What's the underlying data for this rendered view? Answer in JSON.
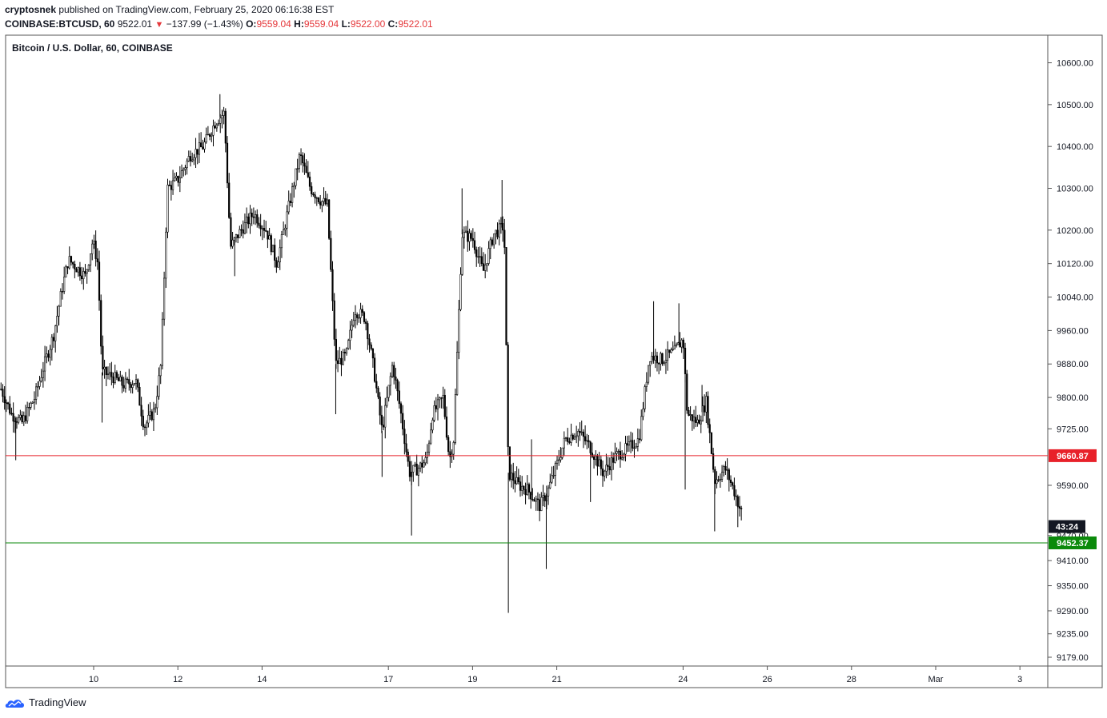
{
  "header": {
    "author": "cryptosnek",
    "published_text": "published on TradingView.com, February 25, 2020 06:16:38 EST",
    "symbol": "COINBASE:BTCUSD, 60",
    "last": "9522.01",
    "change": "−137.99 (−1.43%)",
    "o_label": "O:",
    "o_value": "9559.04",
    "h_label": "H:",
    "h_value": "9559.04",
    "l_label": "L:",
    "l_value": "9522.00",
    "c_label": "C:",
    "c_value": "9522.01"
  },
  "legend_title": "Bitcoin / U.S. Dollar, 60, COINBASE",
  "brand": "TradingView",
  "colors": {
    "candle": "#000000",
    "red_line": "#e8212a",
    "green_line": "#0b8a0b",
    "axis_border": "#555555",
    "grid": "#e6e6e6"
  },
  "chart_data": {
    "type": "candlestick",
    "y_ticks": [
      {
        "label": "10600.00",
        "value": 10600
      },
      {
        "label": "10500.00",
        "value": 10500
      },
      {
        "label": "10400.00",
        "value": 10400
      },
      {
        "label": "10300.00",
        "value": 10300
      },
      {
        "label": "10200.00",
        "value": 10200
      },
      {
        "label": "10120.00",
        "value": 10120
      },
      {
        "label": "10040.00",
        "value": 10040
      },
      {
        "label": "9960.00",
        "value": 9960
      },
      {
        "label": "9880.00",
        "value": 9880
      },
      {
        "label": "9800.00",
        "value": 9800
      },
      {
        "label": "9725.00",
        "value": 9725
      },
      {
        "label": "9590.00",
        "value": 9590
      },
      {
        "label": "9470.00",
        "value": 9470
      },
      {
        "label": "9410.00",
        "value": 9410
      },
      {
        "label": "9350.00",
        "value": 9350
      },
      {
        "label": "9290.00",
        "value": 9290
      },
      {
        "label": "9235.00",
        "value": 9235
      },
      {
        "label": "9179.00",
        "value": 9179
      }
    ],
    "x_ticks": [
      {
        "label": "10",
        "t": 2
      },
      {
        "label": "12",
        "t": 4
      },
      {
        "label": "14",
        "t": 6
      },
      {
        "label": "17",
        "t": 9
      },
      {
        "label": "19",
        "t": 11
      },
      {
        "label": "21",
        "t": 13
      },
      {
        "label": "24",
        "t": 16
      },
      {
        "label": "26",
        "t": 18
      },
      {
        "label": "28",
        "t": 20
      },
      {
        "label": "Mar",
        "t": 22
      },
      {
        "label": "3",
        "t": 24
      }
    ],
    "horizontal_lines": [
      {
        "label": "9660.87",
        "value": 9660.87,
        "color": "red"
      },
      {
        "label": "9452.37",
        "value": 9452.37,
        "color": "green"
      }
    ],
    "countdown_label": "43:24",
    "countdown_value": 9522.01,
    "price_path": [
      {
        "t": -0.2,
        "v": 9820
      },
      {
        "t": 0.05,
        "v": 9760
      },
      {
        "t": 0.3,
        "v": 9740
      },
      {
        "t": 0.6,
        "v": 9800
      },
      {
        "t": 0.8,
        "v": 9870
      },
      {
        "t": 1.05,
        "v": 9950
      },
      {
        "t": 1.25,
        "v": 10060
      },
      {
        "t": 1.4,
        "v": 10130
      },
      {
        "t": 1.6,
        "v": 10110
      },
      {
        "t": 1.8,
        "v": 10090
      },
      {
        "t": 1.98,
        "v": 10175
      },
      {
        "t": 2.1,
        "v": 10120
      },
      {
        "t": 2.2,
        "v": 9860
      },
      {
        "t": 2.45,
        "v": 9850
      },
      {
        "t": 2.7,
        "v": 9830
      },
      {
        "t": 3.0,
        "v": 9840
      },
      {
        "t": 3.2,
        "v": 9730
      },
      {
        "t": 3.45,
        "v": 9770
      },
      {
        "t": 3.6,
        "v": 9880
      },
      {
        "t": 3.75,
        "v": 10300
      },
      {
        "t": 4.0,
        "v": 10320
      },
      {
        "t": 4.3,
        "v": 10380
      },
      {
        "t": 4.6,
        "v": 10400
      },
      {
        "t": 4.9,
        "v": 10460
      },
      {
        "t": 5.1,
        "v": 10480
      },
      {
        "t": 5.25,
        "v": 10160
      },
      {
        "t": 5.5,
        "v": 10200
      },
      {
        "t": 5.8,
        "v": 10240
      },
      {
        "t": 6.1,
        "v": 10200
      },
      {
        "t": 6.35,
        "v": 10120
      },
      {
        "t": 6.6,
        "v": 10240
      },
      {
        "t": 6.9,
        "v": 10380
      },
      {
        "t": 7.15,
        "v": 10300
      },
      {
        "t": 7.4,
        "v": 10270
      },
      {
        "t": 7.55,
        "v": 10260
      },
      {
        "t": 7.75,
        "v": 9880
      },
      {
        "t": 8.0,
        "v": 9900
      },
      {
        "t": 8.2,
        "v": 10010
      },
      {
        "t": 8.45,
        "v": 9990
      },
      {
        "t": 8.65,
        "v": 9870
      },
      {
        "t": 8.85,
        "v": 9720
      },
      {
        "t": 9.1,
        "v": 9880
      },
      {
        "t": 9.3,
        "v": 9760
      },
      {
        "t": 9.5,
        "v": 9620
      },
      {
        "t": 9.7,
        "v": 9630
      },
      {
        "t": 9.9,
        "v": 9650
      },
      {
        "t": 10.05,
        "v": 9760
      },
      {
        "t": 10.3,
        "v": 9800
      },
      {
        "t": 10.45,
        "v": 9650
      },
      {
        "t": 10.55,
        "v": 9700
      },
      {
        "t": 10.75,
        "v": 10190
      },
      {
        "t": 11.0,
        "v": 10180
      },
      {
        "t": 11.25,
        "v": 10100
      },
      {
        "t": 11.5,
        "v": 10190
      },
      {
        "t": 11.75,
        "v": 10210
      },
      {
        "t": 11.85,
        "v": 9620
      },
      {
        "t": 12.1,
        "v": 9590
      },
      {
        "t": 12.3,
        "v": 9580
      },
      {
        "t": 12.6,
        "v": 9540
      },
      {
        "t": 12.8,
        "v": 9580
      },
      {
        "t": 13.0,
        "v": 9640
      },
      {
        "t": 13.2,
        "v": 9700
      },
      {
        "t": 13.5,
        "v": 9720
      },
      {
        "t": 13.8,
        "v": 9680
      },
      {
        "t": 14.1,
        "v": 9620
      },
      {
        "t": 14.4,
        "v": 9660
      },
      {
        "t": 14.7,
        "v": 9680
      },
      {
        "t": 14.95,
        "v": 9700
      },
      {
        "t": 15.2,
        "v": 9900
      },
      {
        "t": 15.5,
        "v": 9890
      },
      {
        "t": 15.8,
        "v": 9910
      },
      {
        "t": 16.0,
        "v": 9940
      },
      {
        "t": 16.1,
        "v": 9760
      },
      {
        "t": 16.35,
        "v": 9740
      },
      {
        "t": 16.55,
        "v": 9790
      },
      {
        "t": 16.75,
        "v": 9600
      },
      {
        "t": 17.0,
        "v": 9630
      },
      {
        "t": 17.2,
        "v": 9580
      },
      {
        "t": 17.4,
        "v": 9520
      }
    ],
    "wick_spikes": [
      {
        "t": 0.15,
        "lo": 9650
      },
      {
        "t": 2.2,
        "lo": 9740
      },
      {
        "t": 5.0,
        "hi": 10525
      },
      {
        "t": 5.35,
        "lo": 10090
      },
      {
        "t": 7.75,
        "lo": 9760
      },
      {
        "t": 8.85,
        "lo": 9610
      },
      {
        "t": 9.55,
        "lo": 9470
      },
      {
        "t": 10.75,
        "hi": 10300
      },
      {
        "t": 11.7,
        "hi": 10320
      },
      {
        "t": 11.85,
        "lo": 9285
      },
      {
        "t": 12.4,
        "hi": 9700
      },
      {
        "t": 12.75,
        "lo": 9390
      },
      {
        "t": 13.8,
        "lo": 9550
      },
      {
        "t": 15.3,
        "hi": 10030
      },
      {
        "t": 15.9,
        "hi": 10025
      },
      {
        "t": 16.05,
        "lo": 9580
      },
      {
        "t": 16.45,
        "hi": 9830
      },
      {
        "t": 16.75,
        "lo": 9480
      },
      {
        "t": 17.3,
        "lo": 9490
      }
    ]
  }
}
